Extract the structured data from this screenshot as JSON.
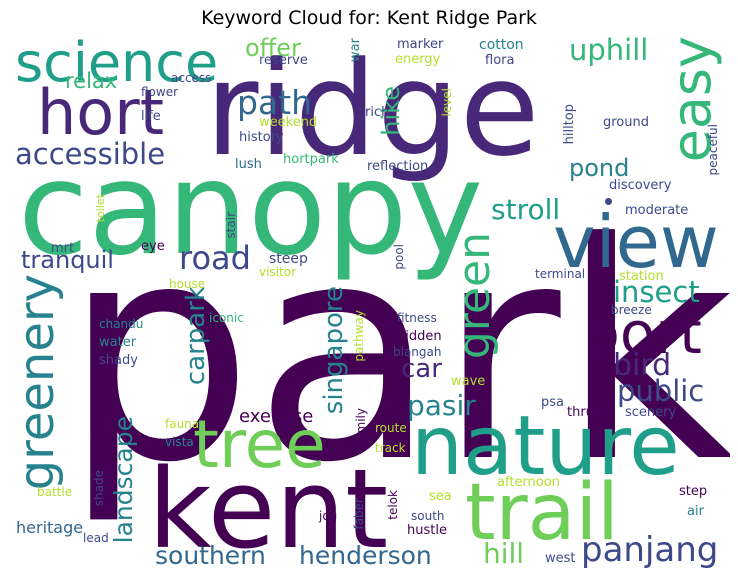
{
  "title": "Keyword Cloud for: Kent Ridge Park",
  "colors": {
    "dark_purple": "#440154",
    "purple": "#482878",
    "indigo": "#3e4989",
    "blue": "#31688e",
    "teal": "#26828e",
    "green_teal": "#1f9e89",
    "green": "#35b779",
    "lime": "#6ece58",
    "yellow_green": "#b5de2b",
    "yellow": "#c8e020"
  },
  "words": [
    "park",
    "canopy",
    "ridge",
    "nature",
    "kent",
    "view",
    "trail",
    "tree",
    "science",
    "hort",
    "easy",
    "greenery",
    "port",
    "green",
    "accessible",
    "path",
    "road",
    "panjang",
    "southern",
    "henderson",
    "uphill",
    "stroll",
    "insect",
    "bird",
    "public",
    "pasir",
    "carpark",
    "singapore",
    "landscape",
    "tranquil",
    "pond",
    "car",
    "hill",
    "relax",
    "hike",
    "offer",
    "exercise",
    "heritage",
    "war",
    "marker",
    "reserve",
    "energy",
    "cotton",
    "flora",
    "weekend",
    "rich",
    "history",
    "lush",
    "hortpark",
    "reflection",
    "level",
    "hilltop",
    "ground",
    "peaceful",
    "access",
    "flower",
    "life",
    "discovery",
    "moderate",
    "mrt",
    "toilet",
    "eye",
    "stair",
    "steep",
    "visitor",
    "pool",
    "terminal",
    "station",
    "house",
    "iconic",
    "breeze",
    "chandu",
    "water",
    "shady",
    "fitness",
    "hidden",
    "blangah",
    "pathway",
    "wave",
    "psa",
    "thrush",
    "scenery",
    "fauna",
    "vista",
    "family",
    "route",
    "track",
    "afternoon",
    "sea",
    "battle",
    "shade",
    "jog",
    "lead",
    "telok",
    "faber",
    "south",
    "hustle",
    "step",
    "air",
    "west"
  ]
}
